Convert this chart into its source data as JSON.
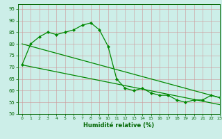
{
  "xlabel": "Humidité relative (%)",
  "background_color": "#cceee8",
  "grid_color": "#bbddcc",
  "line_color": "#008800",
  "ylim": [
    50,
    97
  ],
  "xlim": [
    -0.5,
    23
  ],
  "yticks": [
    50,
    55,
    60,
    65,
    70,
    75,
    80,
    85,
    90,
    95
  ],
  "xticks": [
    0,
    1,
    2,
    3,
    4,
    5,
    6,
    7,
    8,
    9,
    10,
    11,
    12,
    13,
    14,
    15,
    16,
    17,
    18,
    19,
    20,
    21,
    22,
    23
  ],
  "curve_x": [
    0,
    1,
    2,
    3,
    4,
    5,
    6,
    7,
    8,
    9,
    10,
    11,
    12,
    13,
    14,
    15,
    16,
    17,
    18,
    19,
    20,
    21,
    22,
    23
  ],
  "curve_y": [
    71,
    80,
    83,
    85,
    84,
    85,
    86,
    88,
    89,
    86,
    79,
    65,
    61,
    60,
    61,
    59,
    58,
    58,
    56,
    55,
    56,
    56,
    58,
    57
  ],
  "line1_x": [
    0,
    23
  ],
  "line1_y": [
    80,
    57
  ],
  "line2_x": [
    0,
    23
  ],
  "line2_y": [
    71,
    54
  ]
}
